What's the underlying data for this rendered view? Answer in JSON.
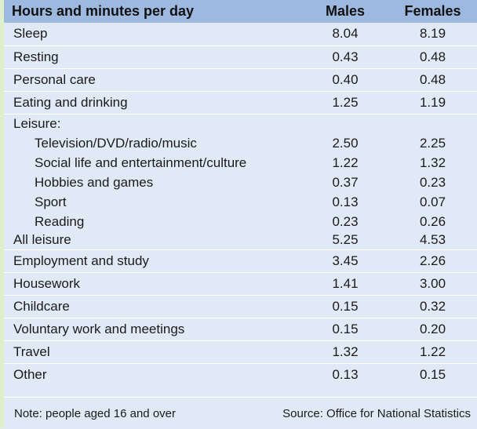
{
  "header": {
    "label_col": "Hours and minutes per day",
    "males_col": "Males",
    "females_col": "Females"
  },
  "rows": [
    {
      "label": "Sleep",
      "males": "8.04",
      "females": "8.19"
    },
    {
      "label": "Resting",
      "males": "0.43",
      "females": "0.48"
    },
    {
      "label": "Personal care",
      "males": "0.40",
      "females": "0.48"
    },
    {
      "label": "Eating and drinking",
      "males": "1.25",
      "females": "1.19"
    },
    {
      "label": "Leisure:",
      "males": "",
      "females": ""
    },
    {
      "label": "Television/DVD/radio/music",
      "males": "2.50",
      "females": "2.25"
    },
    {
      "label": "Social life and entertainment/culture",
      "males": "1.22",
      "females": "1.32"
    },
    {
      "label": "Hobbies and games",
      "males": "0.37",
      "females": "0.23"
    },
    {
      "label": "Sport",
      "males": "0.13",
      "females": "0.07"
    },
    {
      "label": "Reading",
      "males": "0.23",
      "females": "0.26"
    },
    {
      "label": "All leisure",
      "males": "5.25",
      "females": "4.53"
    },
    {
      "label": "Employment and study",
      "males": "3.45",
      "females": "2.26"
    },
    {
      "label": "Housework",
      "males": "1.41",
      "females": "3.00"
    },
    {
      "label": "Childcare",
      "males": "0.15",
      "females": "0.32"
    },
    {
      "label": "Voluntary work and meetings",
      "males": "0.15",
      "females": "0.20"
    },
    {
      "label": "Travel",
      "males": "1.32",
      "females": "1.22"
    },
    {
      "label": "Other",
      "males": "0.13",
      "females": "0.15"
    }
  ],
  "footer": {
    "note": "Note: people aged 16 and over",
    "source": "Source: Office for National Statistics"
  }
}
